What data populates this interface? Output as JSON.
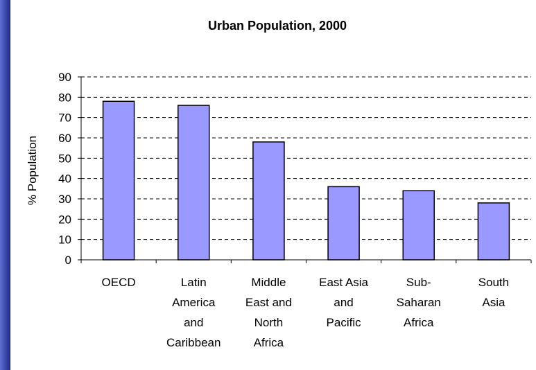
{
  "chart_data": {
    "type": "bar",
    "title": "Urban Population, 2000",
    "xlabel": "",
    "ylabel": "% Population",
    "categories": [
      [
        "OECD"
      ],
      [
        "Latin",
        "America",
        "and",
        "Caribbean"
      ],
      [
        "Middle",
        "East and",
        "North",
        "Africa"
      ],
      [
        "East Asia",
        "and",
        "Pacific"
      ],
      [
        "Sub-",
        "Saharan",
        "Africa"
      ],
      [
        "South",
        "Asia"
      ]
    ],
    "values": [
      78,
      76,
      58,
      36,
      34,
      28
    ],
    "ylim": [
      0,
      90
    ],
    "yticks": [
      0,
      10,
      20,
      30,
      40,
      50,
      60,
      70,
      80,
      90
    ],
    "grid": true,
    "legend": "none",
    "colors": {
      "bar_fill": "#9999ff",
      "bar_stroke": "#000000",
      "gridline": "#000000",
      "frame": "#2b3b9c"
    }
  }
}
